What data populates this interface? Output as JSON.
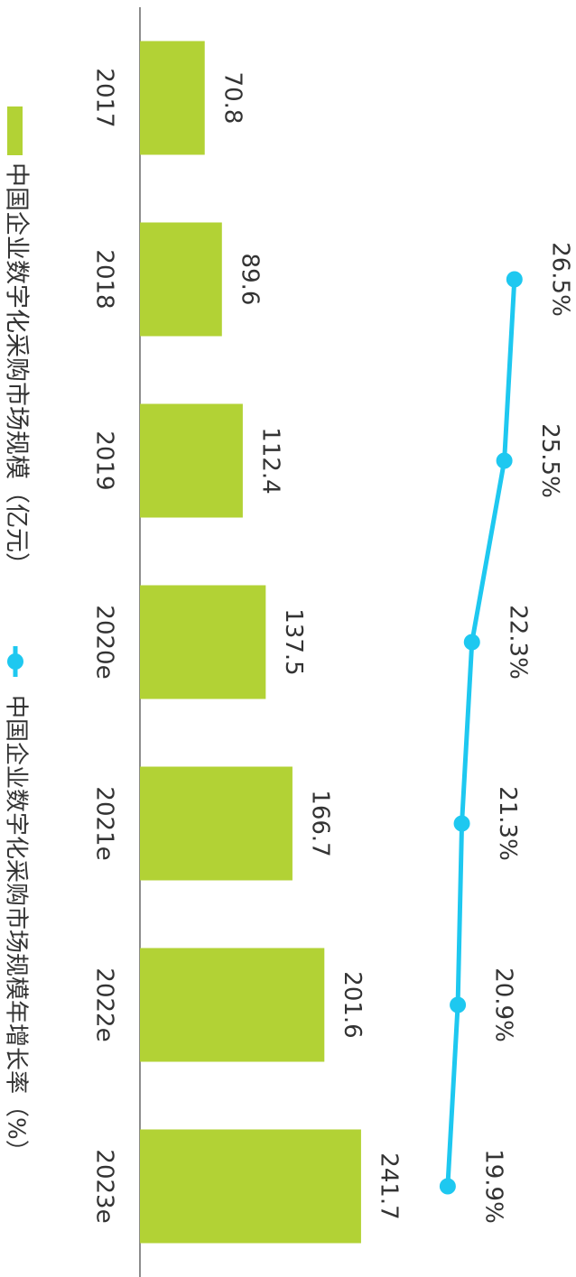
{
  "chart_data": {
    "type": "combo",
    "categories": [
      "2017",
      "2018",
      "2019",
      "2020e",
      "2021e",
      "2022e",
      "2023e"
    ],
    "series": [
      {
        "name": "中国企业数字化采购市场规模（亿元）",
        "type": "bar",
        "color": "#b2d235",
        "values": [
          70.8,
          89.6,
          112.4,
          137.5,
          166.7,
          201.6,
          241.7
        ]
      },
      {
        "name": "中国企业数字化采购市场规模年增长率（%）",
        "type": "line",
        "axis": "y2",
        "color": "#1ec8f0",
        "values": [
          null,
          26.5,
          25.5,
          22.3,
          21.3,
          20.9,
          19.9
        ],
        "value_labels": [
          null,
          "26.5%",
          "25.5%",
          "22.3%",
          "21.3%",
          "20.9%",
          "19.9%"
        ]
      }
    ],
    "ylim": [
      0,
      300
    ],
    "y2lim": [
      0,
      30
    ],
    "rotated": true
  }
}
